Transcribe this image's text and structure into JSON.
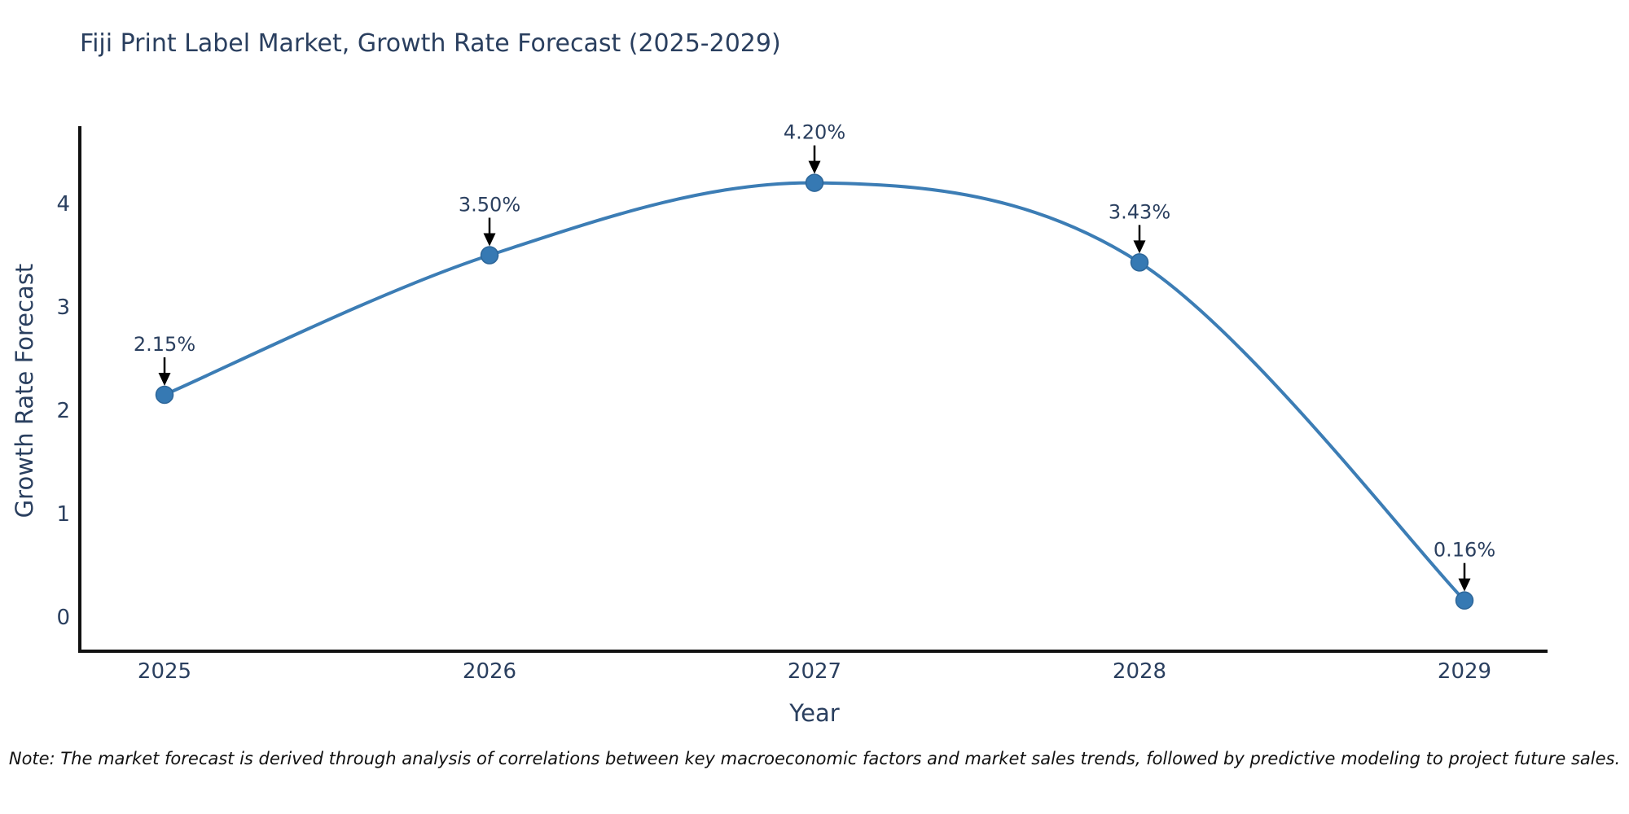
{
  "chart_data": {
    "type": "line",
    "title": "Fiji Print Label Market, Growth Rate Forecast (2025-2029)",
    "xlabel": "Year",
    "ylabel": "Growth Rate Forecast",
    "categories": [
      "2025",
      "2026",
      "2027",
      "2028",
      "2029"
    ],
    "values": [
      2.15,
      3.5,
      4.2,
      3.43,
      0.16
    ],
    "point_labels": [
      "2.15%",
      "3.50%",
      "4.20%",
      "3.43%",
      "0.16%"
    ],
    "yticks": [
      "0",
      "1",
      "2",
      "3",
      "4"
    ],
    "ylim": [
      -0.35,
      4.75
    ],
    "line_shape": "spline",
    "grid": false,
    "legend": "none",
    "annotations_have_arrows": true,
    "colors": {
      "line": "#3c7db5",
      "marker_fill": "#3679b3",
      "marker_edge": "#2d6699",
      "arrow": "#000000",
      "label_text": "#2a3f5f",
      "tick_text": "#2a3f5f",
      "axis_line": "#111111",
      "title_text": "#2a3f5f",
      "background": "#ffffff"
    }
  },
  "note": {
    "text": "Note: The market forecast is derived through analysis of correlations between key macroeconomic factors and market sales trends, followed by predictive modeling to project future sales."
  }
}
